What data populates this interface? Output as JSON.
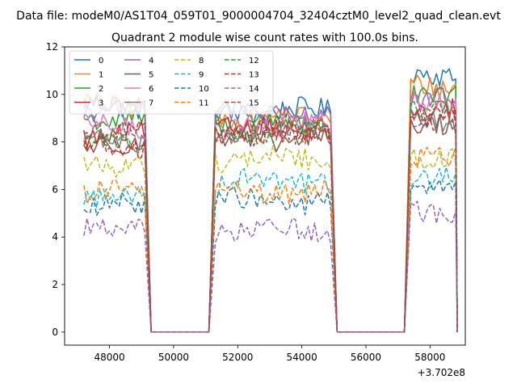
{
  "chart_data": {
    "type": "line",
    "suptitle": "Data file: modeM0/AS1T04_059T01_9000004704_32404cztM0_level2_quad_clean.evt",
    "title": "Quadrant 2 module wise count rates with 100.0s bins.",
    "xlabel": "",
    "ylabel": "",
    "x_offset_label": "+3.702e8",
    "x_offset": 370200000,
    "xlim": [
      46600,
      59100
    ],
    "ylim": [
      -0.55,
      12.0
    ],
    "x_ticks": [
      48000,
      50000,
      52000,
      54000,
      56000,
      58000
    ],
    "x_tick_labels": [
      "48000",
      "50000",
      "52000",
      "54000",
      "56000",
      "58000"
    ],
    "y_ticks": [
      0,
      2,
      4,
      6,
      8,
      10,
      12
    ],
    "y_tick_labels": [
      "0",
      "2",
      "4",
      "6",
      "8",
      "10",
      "12"
    ],
    "grid": false,
    "legend_position": "top-left",
    "legend_columns": 4,
    "segments": [
      {
        "on_start": 47200,
        "on_end": 49100,
        "ramp_end": 49300
      },
      {
        "off_start": 49300,
        "off_end": 51100
      },
      {
        "on_start": 51300,
        "on_end": 54900,
        "ramp_end": 55100
      },
      {
        "off_start": 55100,
        "off_end": 57200
      },
      {
        "on_start": 57400,
        "on_end": 58800,
        "ramp_end": 58850
      }
    ],
    "series": [
      {
        "name": "0",
        "color": "#1f77b4",
        "dash": "solid",
        "levels": [
          9.5,
          9.3,
          10.8
        ]
      },
      {
        "name": "1",
        "color": "#ff7f0e",
        "dash": "solid",
        "levels": [
          9.6,
          9.0,
          10.4
        ]
      },
      {
        "name": "2",
        "color": "#2ca02c",
        "dash": "solid",
        "levels": [
          9.0,
          8.8,
          10.0
        ]
      },
      {
        "name": "3",
        "color": "#d62728",
        "dash": "solid",
        "levels": [
          8.3,
          8.6,
          9.3
        ]
      },
      {
        "name": "4",
        "color": "#9467bd",
        "dash": "solid",
        "levels": [
          9.4,
          9.2,
          9.7
        ]
      },
      {
        "name": "5",
        "color": "#8c564b",
        "dash": "solid",
        "levels": [
          7.8,
          8.1,
          8.6
        ]
      },
      {
        "name": "6",
        "color": "#e377c2",
        "dash": "solid",
        "levels": [
          8.6,
          8.7,
          9.6
        ]
      },
      {
        "name": "7",
        "color": "#7f7f7f",
        "dash": "solid",
        "levels": [
          8.1,
          8.5,
          8.9
        ]
      },
      {
        "name": "8",
        "color": "#bcbd22",
        "dash": "dashed",
        "levels": [
          7.1,
          7.3,
          7.4
        ]
      },
      {
        "name": "9",
        "color": "#17becf",
        "dash": "dashed",
        "levels": [
          5.8,
          6.4,
          6.6
        ]
      },
      {
        "name": "10",
        "color": "#1f77b4",
        "dash": "dashed",
        "levels": [
          5.3,
          5.5,
          6.0
        ]
      },
      {
        "name": "11",
        "color": "#ff7f0e",
        "dash": "dashed",
        "levels": [
          5.9,
          5.9,
          7.3
        ]
      },
      {
        "name": "12",
        "color": "#2ca02c",
        "dash": "dashed",
        "levels": [
          8.0,
          8.5,
          9.3
        ]
      },
      {
        "name": "13",
        "color": "#d62728",
        "dash": "dashed",
        "levels": [
          7.8,
          8.3,
          9.1
        ]
      },
      {
        "name": "14",
        "color": "#9467bd",
        "dash": "dashed",
        "levels": [
          4.4,
          4.3,
          5.1
        ]
      },
      {
        "name": "15",
        "color": "#8c564b",
        "dash": "dashed",
        "levels": [
          8.5,
          8.4,
          9.0
        ]
      }
    ]
  }
}
